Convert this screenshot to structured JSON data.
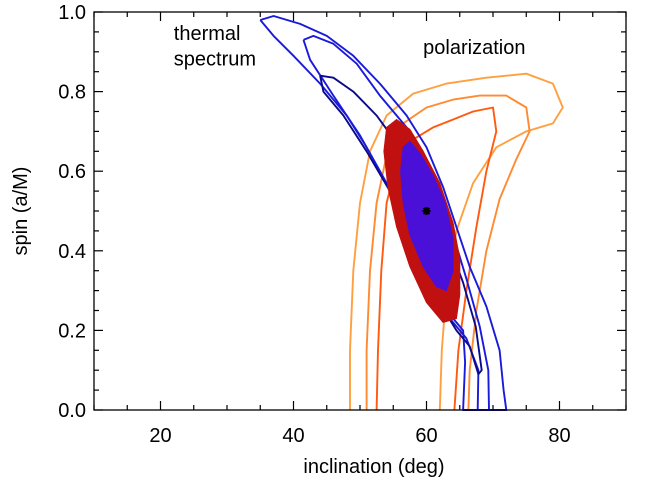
{
  "chart_data": {
    "type": "contour",
    "xlabel": "inclination (deg)",
    "ylabel": "spin (a/M)",
    "xlim": [
      10,
      90
    ],
    "ylim": [
      0.0,
      1.0
    ],
    "xticks": [
      20,
      40,
      60,
      80
    ],
    "xtick_labels": [
      "20",
      "40",
      "60",
      "80"
    ],
    "yticks": [
      0.0,
      0.2,
      0.4,
      0.6,
      0.8,
      1.0
    ],
    "ytick_labels": [
      "0.0",
      "0.2",
      "0.4",
      "0.6",
      "0.8",
      "1.0"
    ],
    "grid": false,
    "annotations": [
      {
        "text": "thermal",
        "x": 22,
        "y": 0.93
      },
      {
        "text": "spectrum",
        "x": 22,
        "y": 0.865
      },
      {
        "text": "polarization",
        "x": 59.5,
        "y": 0.895
      }
    ],
    "best_fit": {
      "x": 60,
      "y": 0.5
    },
    "colors": {
      "thermal": "#1a1adb",
      "thermal_dark": "#0a0a8c",
      "thermal_fill": "#4a10d8",
      "pol_outer": "#ffa040",
      "pol_mid": "#ff8a30",
      "pol_inner": "#ff5a10",
      "joint_fill": "#c01010"
    },
    "series": [
      {
        "group": "polarization",
        "level": "outer",
        "color": "#ffa040",
        "points": [
          [
            48.5,
            0.0
          ],
          [
            48.5,
            0.15
          ],
          [
            49,
            0.35
          ],
          [
            50,
            0.52
          ],
          [
            51.5,
            0.65
          ],
          [
            54,
            0.74
          ],
          [
            58,
            0.795
          ],
          [
            63,
            0.82
          ],
          [
            69,
            0.835
          ],
          [
            75,
            0.845
          ],
          [
            79,
            0.82
          ],
          [
            80.5,
            0.76
          ],
          [
            79,
            0.72
          ],
          [
            75,
            0.7
          ],
          [
            70.5,
            0.66
          ],
          [
            67,
            0.57
          ],
          [
            64.5,
            0.45
          ],
          [
            63,
            0.3
          ],
          [
            62.3,
            0.15
          ],
          [
            62,
            0.0
          ]
        ]
      },
      {
        "group": "polarization",
        "level": "mid",
        "color": "#ff8a30",
        "points": [
          [
            51,
            0.0
          ],
          [
            51,
            0.15
          ],
          [
            51.5,
            0.35
          ],
          [
            52.5,
            0.52
          ],
          [
            54,
            0.64
          ],
          [
            56.5,
            0.72
          ],
          [
            60,
            0.76
          ],
          [
            64,
            0.78
          ],
          [
            68,
            0.79
          ],
          [
            72,
            0.79
          ],
          [
            75,
            0.76
          ],
          [
            75.5,
            0.7
          ],
          [
            73.5,
            0.63
          ],
          [
            71,
            0.53
          ],
          [
            69,
            0.4
          ],
          [
            67.5,
            0.25
          ],
          [
            66.5,
            0.1
          ],
          [
            66.3,
            0.0
          ]
        ]
      },
      {
        "group": "polarization",
        "level": "inner",
        "color": "#ff5a10",
        "points": [
          [
            52.5,
            0.0
          ],
          [
            52.7,
            0.15
          ],
          [
            53.2,
            0.35
          ],
          [
            54,
            0.52
          ],
          [
            55.5,
            0.62
          ],
          [
            58,
            0.68
          ],
          [
            61,
            0.71
          ],
          [
            64,
            0.73
          ],
          [
            67,
            0.75
          ],
          [
            70,
            0.76
          ],
          [
            70.5,
            0.7
          ],
          [
            69,
            0.6
          ],
          [
            67.5,
            0.46
          ],
          [
            66,
            0.3
          ],
          [
            64.8,
            0.15
          ],
          [
            64.2,
            0.0
          ]
        ]
      },
      {
        "group": "thermal",
        "level": "outer",
        "color": "#1a1adb",
        "points": [
          [
            35,
            0.98
          ],
          [
            37,
            0.99
          ],
          [
            41,
            0.97
          ],
          [
            45,
            0.94
          ],
          [
            49,
            0.89
          ],
          [
            53,
            0.82
          ],
          [
            57,
            0.74
          ],
          [
            60,
            0.66
          ],
          [
            62.5,
            0.56
          ],
          [
            64.5,
            0.46
          ],
          [
            66.5,
            0.36
          ],
          [
            69,
            0.26
          ],
          [
            71,
            0.15
          ],
          [
            71.6,
            0.05
          ],
          [
            72,
            0.0
          ],
          [
            65.5,
            0.0
          ],
          [
            65.8,
            0.12
          ],
          [
            65.5,
            0.2
          ],
          [
            63.5,
            0.24
          ],
          [
            61.5,
            0.3
          ],
          [
            59,
            0.39
          ],
          [
            56.5,
            0.48
          ],
          [
            54,
            0.57
          ],
          [
            51,
            0.66
          ],
          [
            48,
            0.74
          ],
          [
            44,
            0.82
          ],
          [
            40,
            0.89
          ],
          [
            37,
            0.94
          ],
          [
            35,
            0.98
          ]
        ]
      },
      {
        "group": "thermal",
        "level": "mid",
        "color": "#1a1adb",
        "points": [
          [
            41.5,
            0.93
          ],
          [
            43,
            0.94
          ],
          [
            46,
            0.92
          ],
          [
            49.5,
            0.87
          ],
          [
            53,
            0.79
          ],
          [
            57,
            0.71
          ],
          [
            60,
            0.63
          ],
          [
            62,
            0.54
          ],
          [
            64,
            0.44
          ],
          [
            66,
            0.33
          ],
          [
            68,
            0.21
          ],
          [
            69.3,
            0.1
          ],
          [
            69.4,
            0.0
          ],
          [
            67.7,
            0.0
          ],
          [
            67.8,
            0.1
          ],
          [
            66,
            0.18
          ],
          [
            63.5,
            0.23
          ],
          [
            61,
            0.31
          ],
          [
            58.5,
            0.4
          ],
          [
            56,
            0.5
          ],
          [
            53,
            0.6
          ],
          [
            50,
            0.69
          ],
          [
            46,
            0.79
          ],
          [
            42.5,
            0.88
          ],
          [
            41.5,
            0.93
          ]
        ]
      },
      {
        "group": "thermal",
        "level": "inner",
        "color": "#0a0a8c",
        "points": [
          [
            44,
            0.84
          ],
          [
            46,
            0.835
          ],
          [
            49,
            0.8
          ],
          [
            52.5,
            0.74
          ],
          [
            56,
            0.66
          ],
          [
            59.5,
            0.58
          ],
          [
            61.8,
            0.5
          ],
          [
            63.5,
            0.41
          ],
          [
            65.5,
            0.32
          ],
          [
            67.4,
            0.21
          ],
          [
            68.3,
            0.1
          ],
          [
            67.8,
            0.09
          ],
          [
            66.5,
            0.16
          ],
          [
            64.5,
            0.2
          ],
          [
            62.3,
            0.26
          ],
          [
            60,
            0.34
          ],
          [
            57.5,
            0.44
          ],
          [
            54.5,
            0.55
          ],
          [
            51,
            0.65
          ],
          [
            47.5,
            0.74
          ],
          [
            44.5,
            0.8
          ],
          [
            44,
            0.84
          ]
        ]
      },
      {
        "group": "joint",
        "level": "fill",
        "color": "#c01010",
        "filled": true,
        "points": [
          [
            54,
            0.71
          ],
          [
            55.5,
            0.73
          ],
          [
            57.5,
            0.705
          ],
          [
            59.5,
            0.65
          ],
          [
            62,
            0.57
          ],
          [
            64,
            0.47
          ],
          [
            65,
            0.38
          ],
          [
            65,
            0.29
          ],
          [
            64.5,
            0.23
          ],
          [
            62.5,
            0.22
          ],
          [
            60,
            0.27
          ],
          [
            57.5,
            0.36
          ],
          [
            55.5,
            0.46
          ],
          [
            54.2,
            0.56
          ],
          [
            53.6,
            0.65
          ],
          [
            54,
            0.71
          ]
        ]
      },
      {
        "group": "thermal",
        "level": "fill",
        "color": "#4a10d8",
        "filled": true,
        "points": [
          [
            56.5,
            0.66
          ],
          [
            57.5,
            0.675
          ],
          [
            59,
            0.645
          ],
          [
            61,
            0.59
          ],
          [
            62.8,
            0.52
          ],
          [
            64,
            0.43
          ],
          [
            64,
            0.35
          ],
          [
            63,
            0.3
          ],
          [
            61.5,
            0.31
          ],
          [
            59.5,
            0.36
          ],
          [
            57.5,
            0.44
          ],
          [
            56.5,
            0.52
          ],
          [
            56.1,
            0.6
          ],
          [
            56.5,
            0.66
          ]
        ]
      }
    ]
  }
}
